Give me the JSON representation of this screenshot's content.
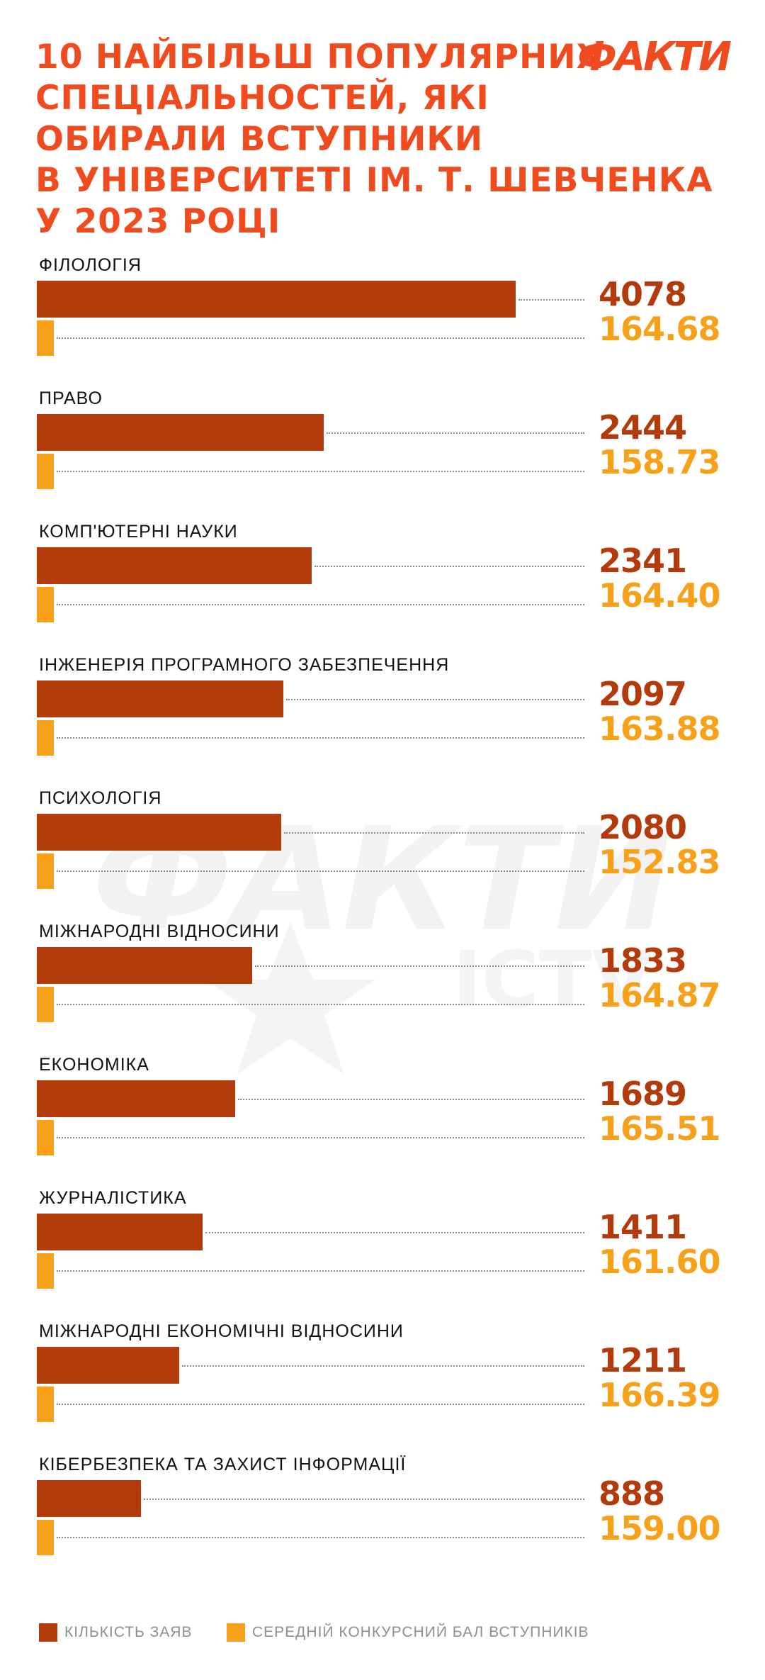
{
  "header": {
    "title_lines": [
      "10 НАЙБІЛЬШ ПОПУЛЯРНИХ",
      "СПЕЦІАЛЬНОСТЕЙ, ЯКІ",
      "ОБИРАЛИ ВСТУПНИКИ",
      "В УНІВЕРСИТЕТІ ІМ. Т. ШЕВЧЕНКА",
      "У 2023 РОЦІ"
    ]
  },
  "logo": {
    "text": "ФАКТИ"
  },
  "watermark": {
    "text_main": "ФАКТИ",
    "text_sub": "ICTV"
  },
  "colors": {
    "title": "#ef4b1f",
    "count_bar": "#b33a0a",
    "score_bar": "#f7a11a",
    "legend_text": "#8f8f8f"
  },
  "chart_data": {
    "type": "bar",
    "orientation": "horizontal",
    "categories": [
      "ФІЛОЛОГІЯ",
      "ПРАВО",
      "КОМП'ЮТЕРНІ НАУКИ",
      "ІНЖЕНЕРІЯ ПРОГРАМНОГО ЗАБЕЗПЕЧЕННЯ",
      "ПСИХОЛОГІЯ",
      "МІЖНАРОДНІ ВІДНОСИНИ",
      "ЕКОНОМІКА",
      "ЖУРНАЛІСТИКА",
      "МІЖНАРОДНІ ЕКОНОМІЧНІ ВІДНОСИНИ",
      "КІБЕРБЕЗПЕКА ТА ЗАХИСТ ІНФОРМАЦІЇ"
    ],
    "series": [
      {
        "name": "КІЛЬКІСТЬ ЗАЯВ",
        "color": "#b33a0a",
        "values": [
          4078,
          2444,
          2341,
          2097,
          2080,
          1833,
          1689,
          1411,
          1211,
          888
        ],
        "labels": [
          "4078",
          "2444",
          "2341",
          "2097",
          "2080",
          "1833",
          "1689",
          "1411",
          "1211",
          "888"
        ]
      },
      {
        "name": "СЕРЕДНІЙ КОНКУРСНИЙ БАЛ ВСТУПНИКІВ",
        "color": "#f7a11a",
        "values": [
          164.68,
          158.73,
          164.4,
          163.88,
          152.83,
          164.87,
          165.51,
          161.6,
          166.39,
          159.0
        ],
        "labels": [
          "164.68",
          "158.73",
          "164.40",
          "163.88",
          "152.83",
          "164.87",
          "165.51",
          "161.60",
          "166.39",
          "159.00"
        ]
      }
    ],
    "grid": false,
    "legend_position": "bottom"
  }
}
